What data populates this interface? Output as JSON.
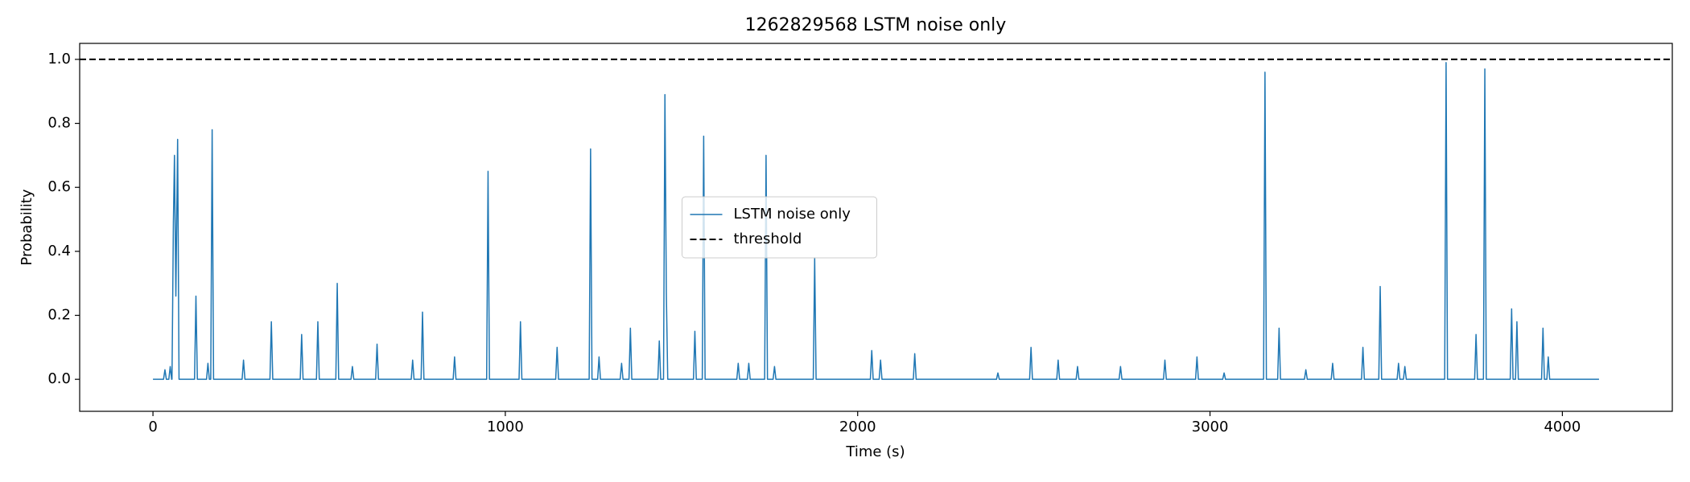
{
  "chart_data": {
    "type": "line",
    "title": "1262829568 LSTM noise only",
    "xlabel": "Time (s)",
    "ylabel": "Probability",
    "x": [
      0,
      30,
      34,
      38,
      45,
      49,
      53,
      54,
      58,
      61,
      65,
      70,
      74,
      118,
      122,
      126,
      152,
      156,
      160,
      164,
      168,
      172,
      253,
      257,
      261,
      332,
      336,
      340,
      418,
      422,
      426,
      464,
      468,
      472,
      519,
      523,
      527,
      562,
      566,
      570,
      632,
      636,
      640,
      733,
      737,
      741,
      761,
      765,
      769,
      852,
      856,
      860,
      947,
      951,
      955,
      1039,
      1043,
      1047,
      1143,
      1147,
      1151,
      1238,
      1242,
      1246,
      1262,
      1266,
      1270,
      1326,
      1330,
      1334,
      1351,
      1355,
      1359,
      1433,
      1437,
      1441,
      1449,
      1453,
      1457,
      1461,
      1534,
      1538,
      1542,
      1559,
      1563,
      1567,
      1657,
      1661,
      1665,
      1687,
      1691,
      1695,
      1736,
      1740,
      1744,
      1760,
      1764,
      1768,
      1874,
      1878,
      1882,
      2036,
      2040,
      2044,
      2061,
      2065,
      2069,
      2158,
      2162,
      2166,
      2394,
      2398,
      2402,
      2488,
      2492,
      2496,
      2565,
      2569,
      2573,
      2620,
      2624,
      2628,
      2742,
      2746,
      2750,
      2868,
      2872,
      2876,
      2959,
      2963,
      2967,
      3036,
      3040,
      3044,
      3152,
      3156,
      3160,
      3192,
      3196,
      3200,
      3268,
      3272,
      3276,
      3344,
      3348,
      3352,
      3430,
      3434,
      3438,
      3479,
      3483,
      3487,
      3531,
      3535,
      3539,
      3549,
      3553,
      3557,
      3666,
      3670,
      3674,
      3751,
      3755,
      3759,
      3776,
      3780,
      3784,
      3852,
      3856,
      3860,
      3867,
      3871,
      3875,
      3941,
      3945,
      3949,
      3956,
      3960,
      3964,
      4104
    ],
    "series": [
      {
        "name": "LSTM noise only",
        "color": "#1f77b4",
        "values": [
          0,
          0,
          0.03,
          0,
          0,
          0.04,
          0,
          0,
          0.49,
          0.7,
          0.26,
          0.75,
          0,
          0,
          0.26,
          0,
          0,
          0.05,
          0,
          0,
          0.78,
          0,
          0,
          0.06,
          0,
          0,
          0.18,
          0,
          0,
          0.14,
          0,
          0,
          0.18,
          0,
          0,
          0.3,
          0,
          0,
          0.04,
          0,
          0,
          0.11,
          0,
          0,
          0.06,
          0,
          0,
          0.21,
          0,
          0,
          0.07,
          0,
          0,
          0.65,
          0,
          0,
          0.18,
          0,
          0,
          0.1,
          0,
          0,
          0.72,
          0,
          0,
          0.07,
          0,
          0,
          0.05,
          0,
          0,
          0.16,
          0,
          0,
          0.12,
          0,
          0,
          0.89,
          0.27,
          0,
          0,
          0.15,
          0,
          0,
          0.76,
          0,
          0,
          0.05,
          0,
          0,
          0.05,
          0,
          0,
          0.7,
          0,
          0,
          0.04,
          0,
          0,
          0.38,
          0,
          0,
          0.09,
          0,
          0,
          0.06,
          0,
          0,
          0.08,
          0,
          0,
          0.02,
          0,
          0,
          0.1,
          0,
          0,
          0.06,
          0,
          0,
          0.04,
          0,
          0,
          0.04,
          0,
          0,
          0.06,
          0,
          0,
          0.07,
          0,
          0,
          0.02,
          0,
          0,
          0.96,
          0,
          0,
          0.16,
          0,
          0,
          0.03,
          0,
          0,
          0.05,
          0,
          0,
          0.1,
          0,
          0,
          0.29,
          0,
          0,
          0.05,
          0,
          0,
          0.04,
          0,
          0,
          0.99,
          0,
          0,
          0.14,
          0,
          0,
          0.97,
          0,
          0,
          0.22,
          0,
          0,
          0.18,
          0,
          0,
          0.16,
          0,
          0,
          0.07,
          0,
          0
        ]
      }
    ],
    "hlines": [
      {
        "name": "threshold",
        "y": 1.0,
        "color": "#000000"
      }
    ],
    "xlim": [
      -208,
      4312
    ],
    "ylim": [
      -0.1,
      1.05
    ],
    "xticks": [
      0,
      1000,
      2000,
      3000,
      4000
    ],
    "yticks": [
      {
        "value": 0,
        "label": "0.0"
      },
      0.2,
      0.4,
      0.6,
      0.8,
      {
        "value": 1,
        "label": "1.0"
      }
    ],
    "grid": false,
    "legend": "center"
  }
}
